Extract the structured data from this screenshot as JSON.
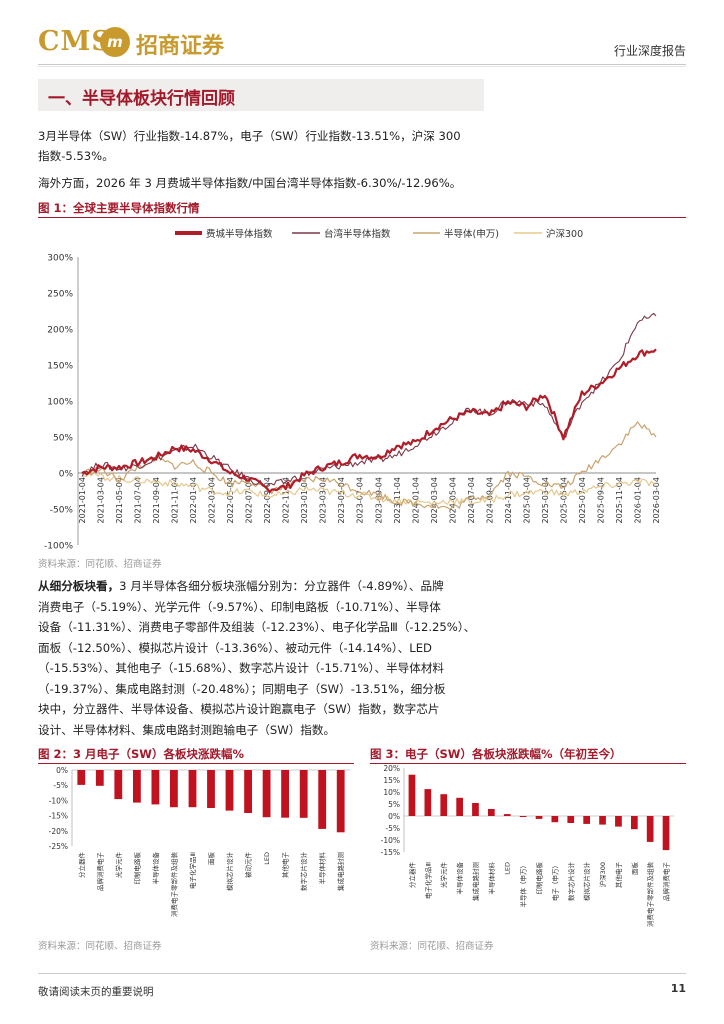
{
  "header": {
    "logo_latin": "CMS",
    "logo_chinese": "招商证券",
    "report_type": "行业深度报告"
  },
  "section": {
    "title": "一、半导体板块行情回顾"
  },
  "intro": {
    "p1a": "3月半导体（SW）行业指数-14.87%，电子（SW）行业指数-13.51%，沪深 300",
    "p1b": "指数-5.53%。",
    "p2": "海外方面，2026 年 3 月费城半导体指数/中国台湾半导体指数-6.30%/-12.96%。"
  },
  "fig1": {
    "caption": "图 1：全球主要半导体指数行情",
    "source": "资料来源：同花顺、招商证券"
  },
  "body": {
    "lead": "从细分板块看，",
    "l1": "3 月半导体各细分板块涨幅分别为：分立器件（-4.89%）、品牌",
    "l2": "消费电子（-5.19%）、光学元件（-9.57%）、印制电路板（-10.71%）、半导体",
    "l3": "设备（-11.31%）、消费电子零部件及组装（-12.23%）、电子化学品Ⅲ（-12.25%）、",
    "l4": "面板（-12.50%）、模拟芯片设计（-13.36%）、被动元件（-14.14%）、LED",
    "l5": "（-15.53%）、其他电子（-15.68%）、数字芯片设计（-15.71%）、半导体材料",
    "l6": "（-19.37%）、集成电路封测（-20.48%）；同期电子（SW）-13.51%，细分板",
    "l7": "块中，分立器件、半导体设备、模拟芯片设计跑赢电子（SW）指数，数字芯片",
    "l8": "设计、半导体材料、集成电路封测跑输电子（SW）指数。"
  },
  "fig2": {
    "caption": "图 2：3 月电子（SW）各板块涨跌幅%",
    "source": "资料来源：同花顺、招商证券"
  },
  "fig3": {
    "caption": "图 3：电子（SW）各板块涨跌幅%（年初至今）",
    "source": "资料来源：同花顺、招商证券"
  },
  "footer": {
    "disclaimer": "敬请阅读末页的重要说明",
    "page": "11"
  },
  "colors": {
    "accent": "#a3192a",
    "gold": "#c89a2e",
    "sox": "#b01c28",
    "tw": "#7a3848",
    "semi": "#c9a36c",
    "hs300": "#e7c88c"
  },
  "chart_data": [
    {
      "type": "line",
      "xlabel": "",
      "ylabel": "",
      "ylim": [
        -100,
        300
      ],
      "yticks": [
        "-100%",
        "-50%",
        "0%",
        "50%",
        "100%",
        "150%",
        "200%",
        "250%",
        "300%"
      ],
      "x": [
        "2021-01-04",
        "2021-03-04",
        "2021-05-04",
        "2021-07-04",
        "2021-09-04",
        "2021-11-04",
        "2022-01-04",
        "2022-03-04",
        "2022-05-04",
        "2022-07-04",
        "2022-09-04",
        "2022-11-04",
        "2023-01-04",
        "2023-03-04",
        "2023-05-04",
        "2023-07-04",
        "2023-09-04",
        "2023-11-04",
        "2024-01-04",
        "2024-03-04",
        "2024-05-04",
        "2024-07-04",
        "2024-09-04",
        "2024-11-04",
        "2025-01-04",
        "2025-03-04",
        "2025-05-04",
        "2025-07-04",
        "2025-09-04",
        "2025-11-04",
        "2026-01-04",
        "2026-03-04"
      ],
      "legend_position": "top",
      "grid": false,
      "series": [
        {
          "name": "费城半导体指数",
          "color": "#b01c28",
          "values": [
            0,
            8,
            8,
            14,
            22,
            35,
            32,
            18,
            0,
            -8,
            -22,
            -20,
            -3,
            8,
            15,
            25,
            22,
            38,
            42,
            62,
            75,
            85,
            80,
            98,
            92,
            110,
            50,
            110,
            125,
            145,
            165,
            172
          ]
        },
        {
          "name": "台湾半导体指数",
          "color": "#7a3848",
          "values": [
            0,
            12,
            6,
            10,
            20,
            30,
            38,
            22,
            5,
            -8,
            -18,
            -12,
            -2,
            5,
            10,
            15,
            18,
            25,
            40,
            55,
            72,
            90,
            82,
            100,
            98,
            95,
            48,
            100,
            125,
            155,
            210,
            218
          ]
        },
        {
          "name": "半导体(申万)",
          "color": "#c9a36c",
          "values": [
            0,
            5,
            -10,
            8,
            20,
            10,
            15,
            0,
            -15,
            -10,
            -25,
            -20,
            -10,
            -8,
            -15,
            -25,
            -30,
            -40,
            -42,
            -45,
            -50,
            -35,
            -30,
            0,
            -5,
            -15,
            -20,
            0,
            20,
            40,
            70,
            50
          ]
        },
        {
          "name": "沪深300",
          "color": "#e7c88c",
          "values": [
            0,
            -5,
            -8,
            -10,
            -12,
            -15,
            -18,
            -25,
            -28,
            -25,
            -32,
            -30,
            -22,
            -25,
            -28,
            -30,
            -35,
            -38,
            -40,
            -42,
            -38,
            -40,
            -38,
            -30,
            -28,
            -25,
            -30,
            -25,
            -20,
            -15,
            -12,
            -15
          ]
        }
      ]
    },
    {
      "type": "bar",
      "title": "",
      "ylim": [
        -25,
        0
      ],
      "yticks": [
        "-25%",
        "-20%",
        "-15%",
        "-10%",
        "-5%",
        "0%"
      ],
      "categories": [
        "分立器件",
        "品牌消费电子",
        "光学元件",
        "印制电路板",
        "半导体设备",
        "消费电子零部件及组装",
        "电子化学品Ⅲ",
        "面板",
        "模拟芯片设计",
        "被动元件",
        "LED",
        "其他电子",
        "数字芯片设计",
        "半导体材料",
        "集成电路封测"
      ],
      "values": [
        -4.89,
        -5.19,
        -9.57,
        -10.71,
        -11.31,
        -12.23,
        -12.25,
        -12.5,
        -13.36,
        -14.14,
        -15.53,
        -15.68,
        -15.71,
        -19.37,
        -20.48
      ]
    },
    {
      "type": "bar",
      "title": "",
      "ylim": [
        -15,
        20
      ],
      "yticks": [
        "-15%",
        "-10%",
        "-5%",
        "0%",
        "5%",
        "10%",
        "15%",
        "20%"
      ],
      "categories": [
        "分立器件",
        "电子化学品Ⅲ",
        "光学元件",
        "半导体设备",
        "集成电路封测",
        "半导体材料",
        "LED",
        "半导体（申万）",
        "印制电路板",
        "电子（申万）",
        "数字芯片设计",
        "模拟芯片设计",
        "沪深300",
        "其他电子",
        "面板",
        "消费电子零部件及组装",
        "品牌消费电子"
      ],
      "values": [
        17.2,
        11.2,
        9.1,
        7.6,
        5.4,
        2.9,
        0.8,
        -0.4,
        -1.2,
        -2.6,
        -2.9,
        -3.3,
        -3.6,
        -4.4,
        -5.5,
        -10.8,
        -14.2
      ]
    }
  ]
}
